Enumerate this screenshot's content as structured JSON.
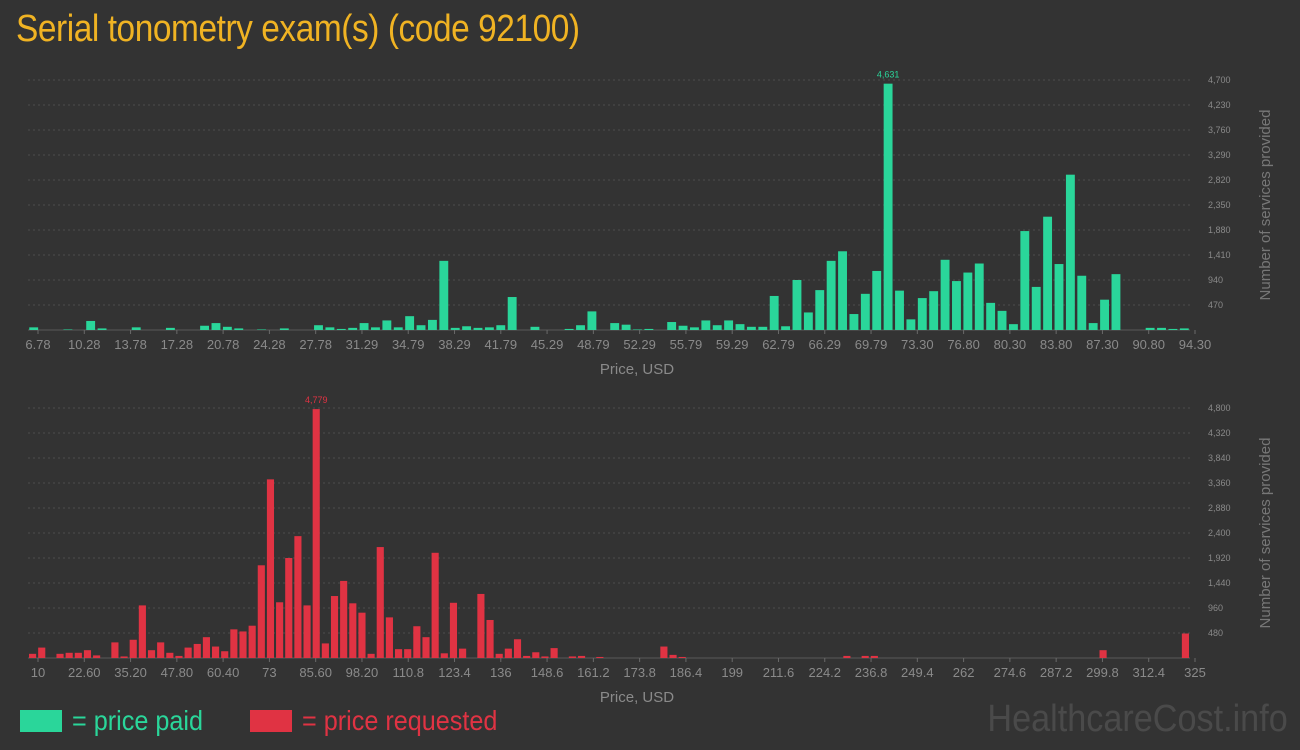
{
  "title": "Serial tonometry exam(s) (code 92100)",
  "colors": {
    "paid": "#2ad69a",
    "requested": "#e03343",
    "title": "#f0b323",
    "background": "#333333"
  },
  "legend": {
    "paid": "= price paid",
    "requested": "= price requested"
  },
  "watermark": "HealthcareCost.info",
  "chart_data": [
    {
      "type": "bar",
      "name": "paid",
      "xlabel": "Price, USD",
      "ylabel": "Number of services provided",
      "ylim": [
        0,
        4700
      ],
      "yticks": [
        "470",
        "940",
        "1,410",
        "1,880",
        "2,350",
        "2,820",
        "3,290",
        "3,760",
        "4,230",
        "4,700"
      ],
      "xtick_labels": [
        "6.78",
        "10.28",
        "13.78",
        "17.28",
        "20.78",
        "24.28",
        "27.78",
        "31.29",
        "34.79",
        "38.29",
        "41.79",
        "45.29",
        "48.79",
        "52.29",
        "55.79",
        "59.29",
        "62.79",
        "66.29",
        "69.79",
        "73.30",
        "76.80",
        "80.30",
        "83.80",
        "87.30",
        "90.80",
        "94.30"
      ],
      "grid": true,
      "peak_label": "4,631",
      "values": [
        50,
        0,
        0,
        10,
        0,
        170,
        30,
        0,
        0,
        50,
        0,
        0,
        40,
        0,
        0,
        80,
        130,
        60,
        30,
        0,
        10,
        0,
        30,
        0,
        0,
        90,
        50,
        20,
        40,
        130,
        50,
        180,
        50,
        260,
        90,
        190,
        1300,
        40,
        70,
        40,
        50,
        90,
        620,
        0,
        60,
        0,
        0,
        20,
        90,
        350,
        0,
        130,
        100,
        10,
        20,
        0,
        150,
        80,
        50,
        180,
        90,
        180,
        110,
        60,
        60,
        640,
        70,
        940,
        330,
        750,
        1300,
        1480,
        300,
        680,
        1110,
        4631,
        740,
        200,
        600,
        730,
        1320,
        920,
        1080,
        1250,
        510,
        360,
        110,
        1860,
        810,
        2130,
        1240,
        2920,
        1020,
        130,
        570,
        1050,
        0,
        0,
        40,
        40,
        20,
        30
      ]
    },
    {
      "type": "bar",
      "name": "requested",
      "xlabel": "Price, USD",
      "ylabel": "Number of services provided",
      "ylim": [
        0,
        4800
      ],
      "yticks": [
        "480",
        "960",
        "1,440",
        "1,920",
        "2,400",
        "2,880",
        "3,360",
        "3,840",
        "4,320",
        "4,800"
      ],
      "xtick_labels": [
        "10",
        "22.60",
        "35.20",
        "47.80",
        "60.40",
        "73",
        "85.60",
        "98.20",
        "110.8",
        "123.4",
        "136",
        "148.6",
        "161.2",
        "173.8",
        "186.4",
        "199",
        "211.6",
        "224.2",
        "236.8",
        "249.4",
        "262",
        "274.6",
        "287.2",
        "299.8",
        "312.4",
        "325"
      ],
      "grid": true,
      "peak_label": "4,779",
      "values": [
        80,
        200,
        0,
        80,
        100,
        100,
        150,
        50,
        0,
        300,
        30,
        350,
        1010,
        150,
        300,
        100,
        40,
        200,
        270,
        400,
        220,
        130,
        550,
        510,
        620,
        1780,
        3430,
        1070,
        1920,
        2340,
        1010,
        4779,
        280,
        1190,
        1480,
        1050,
        870,
        80,
        2130,
        780,
        170,
        170,
        610,
        400,
        2020,
        90,
        1060,
        180,
        0,
        1230,
        730,
        80,
        180,
        360,
        40,
        110,
        30,
        190,
        0,
        30,
        40,
        0,
        20,
        0,
        0,
        0,
        0,
        0,
        0,
        220,
        60,
        20,
        0,
        0,
        0,
        0,
        0,
        0,
        0,
        0,
        0,
        0,
        0,
        0,
        0,
        0,
        0,
        0,
        0,
        40,
        0,
        40,
        40,
        0,
        0,
        0,
        0,
        0,
        0,
        0,
        0,
        0,
        0,
        0,
        0,
        0,
        0,
        0,
        0,
        0,
        0,
        0,
        0,
        0,
        0,
        0,
        0,
        150,
        0,
        0,
        0,
        0,
        0,
        0,
        0,
        0,
        470
      ]
    }
  ]
}
